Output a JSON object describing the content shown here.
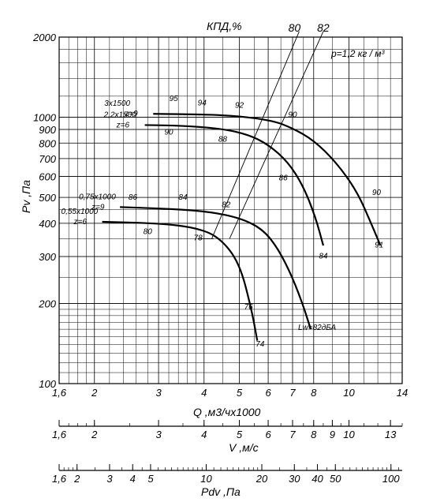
{
  "chart_data": {
    "type": "line",
    "title": "",
    "xlabel": "Q ,м3/чх1000",
    "ylabel": "Pv ,Па",
    "x_scale": "log",
    "y_scale": "log",
    "xlim": [
      1.6,
      14
    ],
    "ylim": [
      100,
      2000
    ],
    "x_ticks": [
      "1,6",
      "2",
      "3",
      "4",
      "5",
      "6",
      "7",
      "8",
      "10",
      "14"
    ],
    "y_ticks": [
      "100",
      "200",
      "300",
      "400",
      "500",
      "600",
      "700",
      "800",
      "900",
      "1000",
      "2000"
    ],
    "efficiency_label": "КПД,%",
    "efficiency_ticks": [
      "80",
      "82"
    ],
    "density_label": "p=1,2 кг / м³",
    "noise_label": "Lw=82дБА",
    "series": [
      {
        "name": "3x1500 z=9",
        "x": [
          2.9,
          4.0,
          5.0,
          6.2,
          7.0,
          8.0,
          9.2,
          10.5,
          11.5,
          12.2
        ],
        "y": [
          1030,
          1025,
          1010,
          970,
          910,
          820,
          680,
          530,
          400,
          330
        ],
        "eff_labels": [
          {
            "text": "95",
            "q": 3.3,
            "p": 1150
          },
          {
            "text": "94",
            "q": 3.95,
            "p": 1110
          },
          {
            "text": "92",
            "q": 5.0,
            "p": 1085
          },
          {
            "text": "90",
            "q": 7.0,
            "p": 1000
          },
          {
            "text": "90",
            "q": 11.9,
            "p": 510
          },
          {
            "text": "91",
            "q": 12.1,
            "p": 325
          }
        ]
      },
      {
        "name": "2,2x1500 z=6",
        "x": [
          2.75,
          3.5,
          4.5,
          5.3,
          6.0,
          6.8,
          7.5,
          8.1,
          8.5
        ],
        "y": [
          935,
          930,
          905,
          860,
          790,
          680,
          550,
          420,
          330
        ],
        "eff_labels": [
          {
            "text": "90",
            "q": 3.2,
            "p": 860
          },
          {
            "text": "88",
            "q": 4.5,
            "p": 810
          },
          {
            "text": "86",
            "q": 6.6,
            "p": 580
          },
          {
            "text": "84",
            "q": 8.5,
            "p": 295
          }
        ]
      },
      {
        "name": "0,75x1000 z=9",
        "x": [
          2.35,
          3.0,
          4.0,
          5.0,
          5.8,
          6.4,
          7.0,
          7.5,
          7.85
        ],
        "y": [
          460,
          455,
          445,
          420,
          380,
          320,
          250,
          195,
          160
        ],
        "eff_labels": [
          {
            "text": "86",
            "q": 2.55,
            "p": 490
          },
          {
            "text": "84",
            "q": 3.5,
            "p": 490
          },
          {
            "text": "82",
            "q": 4.6,
            "p": 460
          }
        ]
      },
      {
        "name": "0,55x1000 z=6",
        "x": [
          2.1,
          3.0,
          3.8,
          4.4,
          5.0,
          5.4,
          5.6
        ],
        "y": [
          405,
          400,
          385,
          355,
          285,
          190,
          145
        ],
        "eff_labels": [
          {
            "text": "80",
            "q": 2.8,
            "p": 365
          },
          {
            "text": "78",
            "q": 3.85,
            "p": 345
          },
          {
            "text": "76",
            "q": 5.3,
            "p": 190
          },
          {
            "text": "74",
            "q": 5.7,
            "p": 138
          }
        ]
      }
    ],
    "efficiency_lines": [
      {
        "name": "80",
        "x": [
          4.2,
          7.3
        ],
        "y": [
          350,
          2100
        ]
      },
      {
        "name": "82",
        "x": [
          4.7,
          8.5
        ],
        "y": [
          350,
          2100
        ]
      }
    ],
    "secondary_axes": [
      {
        "label": "V ,м/с",
        "ticks": [
          "1,6",
          "2",
          "3",
          "4",
          "5",
          "6",
          "7",
          "8",
          "9",
          "10",
          "13"
        ]
      },
      {
        "label": "Pdv ,Па",
        "ticks": [
          "1,6",
          "2",
          "3",
          "4",
          "5",
          "10",
          "20",
          "30",
          "40",
          "50",
          "100"
        ]
      }
    ]
  }
}
